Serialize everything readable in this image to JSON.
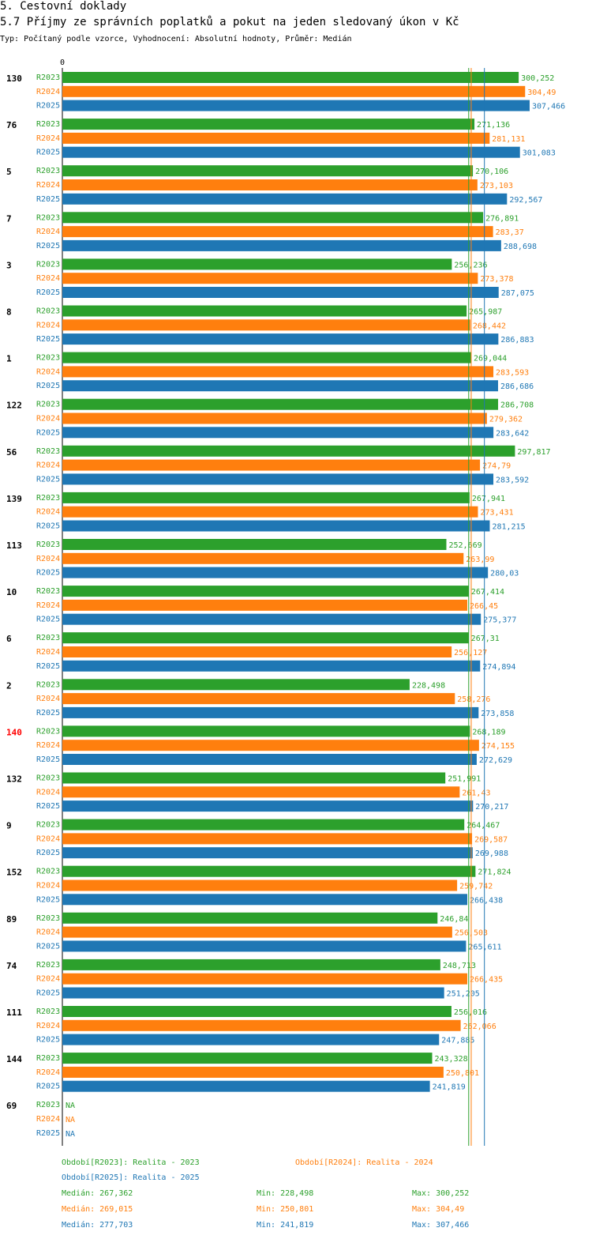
{
  "header": {
    "section": "5. Cestovní doklady",
    "title": "5.7 Příjmy ze správních poplatků a pokut na jeden sledovaný úkon v Kč",
    "subtitle": "Typ: Počítaný podle vzorce, Vyhodnocení: Absolutní hodnoty, Průměr: Medián"
  },
  "colors": {
    "R2023": "#2ca02c",
    "R2024": "#ff7f0e",
    "R2025": "#1f77b4",
    "highlight": "#ff0000",
    "text": "#000000"
  },
  "chart_data": {
    "type": "bar",
    "orientation": "horizontal",
    "title": "5.7 Příjmy ze správních poplatků a pokut na jeden sledovaný úkon v Kč",
    "axis_zero_label": "0",
    "xlim": [
      0,
      307.466
    ],
    "series_names": [
      "R2023",
      "R2024",
      "R2025"
    ],
    "groups": [
      {
        "id": "130",
        "highlight": false,
        "values": [
          300.252,
          304.49,
          307.466
        ],
        "labels": [
          "300,252",
          "304,49",
          "307,466"
        ]
      },
      {
        "id": "76",
        "highlight": false,
        "values": [
          271.136,
          281.131,
          301.083
        ],
        "labels": [
          "271,136",
          "281,131",
          "301,083"
        ]
      },
      {
        "id": "5",
        "highlight": false,
        "values": [
          270.106,
          273.103,
          292.567
        ],
        "labels": [
          "270,106",
          "273,103",
          "292,567"
        ]
      },
      {
        "id": "7",
        "highlight": false,
        "values": [
          276.891,
          283.37,
          288.698
        ],
        "labels": [
          "276,891",
          "283,37",
          "288,698"
        ]
      },
      {
        "id": "3",
        "highlight": false,
        "values": [
          256.236,
          273.378,
          287.075
        ],
        "labels": [
          "256,236",
          "273,378",
          "287,075"
        ]
      },
      {
        "id": "8",
        "highlight": false,
        "values": [
          265.987,
          268.442,
          286.883
        ],
        "labels": [
          "265,987",
          "268,442",
          "286,883"
        ]
      },
      {
        "id": "1",
        "highlight": false,
        "values": [
          269.044,
          283.593,
          286.686
        ],
        "labels": [
          "269,044",
          "283,593",
          "286,686"
        ]
      },
      {
        "id": "122",
        "highlight": false,
        "values": [
          286.708,
          279.362,
          283.642
        ],
        "labels": [
          "286,708",
          "279,362",
          "283,642"
        ]
      },
      {
        "id": "56",
        "highlight": false,
        "values": [
          297.817,
          274.79,
          283.592
        ],
        "labels": [
          "297,817",
          "274,79",
          "283,592"
        ]
      },
      {
        "id": "139",
        "highlight": false,
        "values": [
          267.941,
          273.431,
          281.215
        ],
        "labels": [
          "267,941",
          "273,431",
          "281,215"
        ]
      },
      {
        "id": "113",
        "highlight": false,
        "values": [
          252.669,
          263.99,
          280.03
        ],
        "labels": [
          "252,669",
          "263,99",
          "280,03"
        ]
      },
      {
        "id": "10",
        "highlight": false,
        "values": [
          267.414,
          266.45,
          275.377
        ],
        "labels": [
          "267,414",
          "266,45",
          "275,377"
        ]
      },
      {
        "id": "6",
        "highlight": false,
        "values": [
          267.31,
          256.127,
          274.894
        ],
        "labels": [
          "267,31",
          "256,127",
          "274,894"
        ]
      },
      {
        "id": "2",
        "highlight": false,
        "values": [
          228.498,
          258.276,
          273.858
        ],
        "labels": [
          "228,498",
          "258,276",
          "273,858"
        ]
      },
      {
        "id": "140",
        "highlight": true,
        "values": [
          268.189,
          274.155,
          272.629
        ],
        "labels": [
          "268,189",
          "274,155",
          "272,629"
        ]
      },
      {
        "id": "132",
        "highlight": false,
        "values": [
          251.991,
          261.43,
          270.217
        ],
        "labels": [
          "251,991",
          "261,43",
          "270,217"
        ]
      },
      {
        "id": "9",
        "highlight": false,
        "values": [
          264.467,
          269.587,
          269.988
        ],
        "labels": [
          "264,467",
          "269,587",
          "269,988"
        ]
      },
      {
        "id": "152",
        "highlight": false,
        "values": [
          271.824,
          259.742,
          266.438
        ],
        "labels": [
          "271,824",
          "259,742",
          "266,438"
        ]
      },
      {
        "id": "89",
        "highlight": false,
        "values": [
          246.84,
          256.503,
          265.611
        ],
        "labels": [
          "246,84",
          "256,503",
          "265,611"
        ]
      },
      {
        "id": "74",
        "highlight": false,
        "values": [
          248.713,
          266.435,
          251.205
        ],
        "labels": [
          "248,713",
          "266,435",
          "251,205"
        ]
      },
      {
        "id": "111",
        "highlight": false,
        "values": [
          256.016,
          262.066,
          247.885
        ],
        "labels": [
          "256,016",
          "262,066",
          "247,885"
        ]
      },
      {
        "id": "144",
        "highlight": false,
        "values": [
          243.328,
          250.801,
          241.819
        ],
        "labels": [
          "243,328",
          "250,801",
          "241,819"
        ]
      },
      {
        "id": "69",
        "highlight": false,
        "values": [
          null,
          null,
          null
        ],
        "labels": [
          "NA",
          "NA",
          "NA"
        ]
      }
    ],
    "medians": [
      267.362,
      269.015,
      277.703
    ]
  },
  "legend": {
    "period_2023": "Období[R2023]: Realita - 2023",
    "period_2024": "Období[R2024]: Realita - 2024",
    "period_2025": "Období[R2025]: Realita - 2025",
    "stats": [
      {
        "median": "Medián: 267,362",
        "min": "Min: 228,498",
        "max": "Max: 300,252"
      },
      {
        "median": "Medián: 269,015",
        "min": "Min: 250,801",
        "max": "Max: 304,49"
      },
      {
        "median": "Medián: 277,703",
        "min": "Min: 241,819",
        "max": "Max: 307,466"
      }
    ]
  }
}
